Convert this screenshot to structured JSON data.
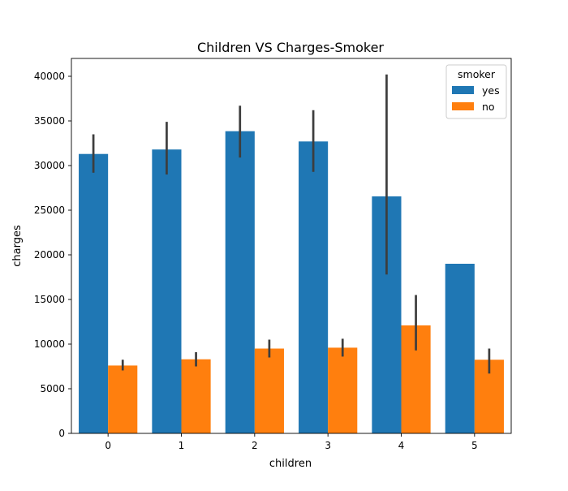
{
  "chart_data": {
    "type": "bar",
    "title": "Children VS Charges-Smoker",
    "xlabel": "children",
    "ylabel": "charges",
    "categories": [
      "0",
      "1",
      "2",
      "3",
      "4",
      "5"
    ],
    "ylim": [
      0,
      42000
    ],
    "yticks": [
      0,
      5000,
      10000,
      15000,
      20000,
      25000,
      30000,
      35000,
      40000
    ],
    "legend": {
      "title": "smoker",
      "position": "top-right"
    },
    "grid": false,
    "series": [
      {
        "name": "yes",
        "color": "#1f77b4",
        "values": [
          31300,
          31800,
          33850,
          32700,
          26550,
          19000
        ],
        "ci_low": [
          29200,
          29000,
          30900,
          29300,
          17800,
          null
        ],
        "ci_high": [
          33500,
          34900,
          36700,
          36200,
          40200,
          null
        ]
      },
      {
        "name": "no",
        "color": "#ff7f0e",
        "values": [
          7600,
          8300,
          9500,
          9600,
          12100,
          8250
        ],
        "ci_low": [
          7050,
          7500,
          8500,
          8600,
          9300,
          6700
        ],
        "ci_high": [
          8250,
          9100,
          10500,
          10600,
          15500,
          9500
        ]
      }
    ]
  }
}
